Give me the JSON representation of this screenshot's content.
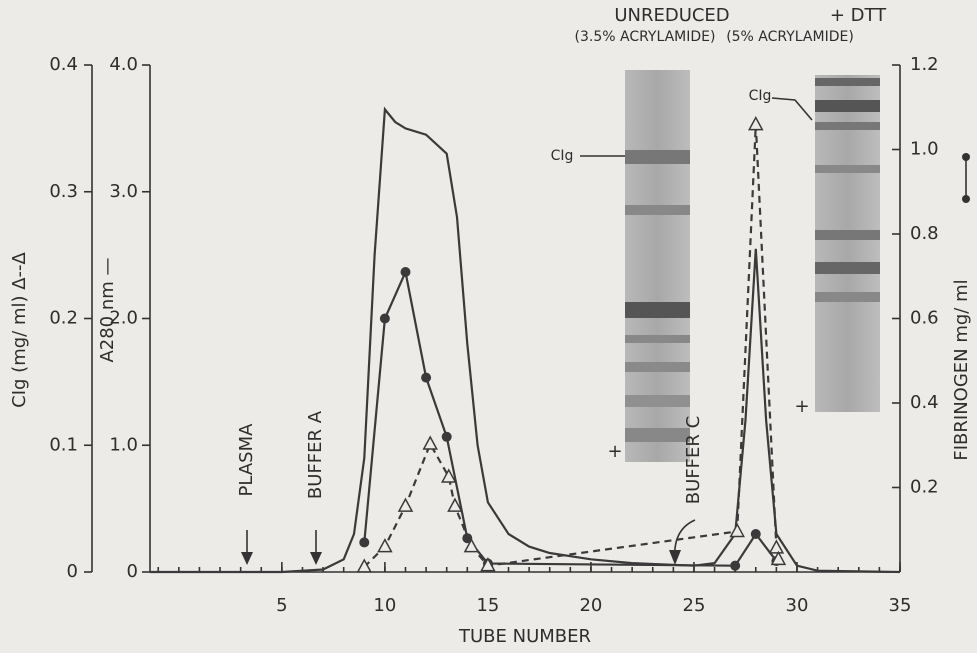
{
  "chart_data": {
    "type": "line",
    "xlabel": "TUBE NUMBER",
    "ylabel": "A280 nm —",
    "y2label": "FIBRINOGEN  mg/ ml",
    "y3label": "CIg (mg/ ml) Δ--Δ",
    "xlim": [
      -1.4,
      35
    ],
    "xticks": [
      5,
      10,
      15,
      20,
      25,
      30,
      35
    ],
    "ylim": [
      0,
      4
    ],
    "yticks": [
      0,
      {
        "value": 1,
        "label": "1.0"
      },
      {
        "value": 2,
        "label": "2.0"
      },
      {
        "value": 3,
        "label": "3.0"
      },
      {
        "value": 4,
        "label": "4.0"
      }
    ],
    "y2lim": [
      0,
      1.2
    ],
    "y2ticks": [
      0.2,
      0.4,
      0.6,
      0.8,
      {
        "value": 1,
        "label": "1.0"
      },
      1.2
    ],
    "y3lim": [
      0,
      0.4
    ],
    "y3ticks": [
      0,
      0.1,
      0.2,
      0.3,
      0.4
    ],
    "series": [
      {
        "color": "#3a3a3a",
        "marker": "none",
        "dash": false,
        "axis": "y",
        "x": [
          -1.4,
          5,
          7,
          8,
          8.5,
          9,
          9.5,
          10,
          10.5,
          11,
          12,
          13,
          13.5,
          14,
          14.5,
          15,
          16,
          17,
          18,
          20,
          22,
          25,
          26,
          27,
          27.5,
          28,
          28.5,
          29,
          30,
          31,
          35
        ],
        "values": [
          0,
          0,
          0.02,
          0.1,
          0.3,
          0.9,
          2.5,
          3.65,
          3.55,
          3.5,
          3.45,
          3.3,
          2.8,
          1.8,
          1.0,
          0.55,
          0.3,
          0.2,
          0.15,
          0.1,
          0.07,
          0.05,
          0.07,
          0.3,
          1.2,
          2.55,
          1.2,
          0.3,
          0.05,
          0.01,
          0
        ]
      },
      {
        "color": "#3a3a3a",
        "marker": "circle",
        "dash": false,
        "axis": "y2",
        "x": [
          9,
          10,
          11,
          12,
          13,
          14,
          15,
          27,
          28,
          29
        ],
        "values": [
          0.07,
          0.6,
          0.71,
          0.46,
          0.32,
          0.08,
          0.02,
          0.015,
          0.09,
          0.026
        ]
      },
      {
        "color": "#3a3a3a",
        "marker": "triangle",
        "dash": true,
        "axis": "y3",
        "x": [
          9,
          10,
          11,
          12.2,
          13.1,
          13.4,
          14.2,
          15,
          27.1,
          28,
          29,
          29.1
        ],
        "values": [
          0.004,
          0.02,
          0.052,
          0.101,
          0.075,
          0.052,
          0.02,
          0.005,
          0.032,
          0.353,
          0.019,
          0.01
        ]
      }
    ],
    "annotations": {
      "plasma": "PLASMA",
      "buffer_a": "BUFFER A",
      "buffer_c": "BUFFER C",
      "unreduced": "UNREDUCED",
      "dtt": "+ DTT",
      "acryl_35": "(3.5% ACRYLAMIDE)",
      "acryl_5": "(5% ACRYLAMIDE)",
      "cig_left": "CIg",
      "cig_right": "CIg",
      "plus_left": "+",
      "plus_right": "+"
    }
  }
}
